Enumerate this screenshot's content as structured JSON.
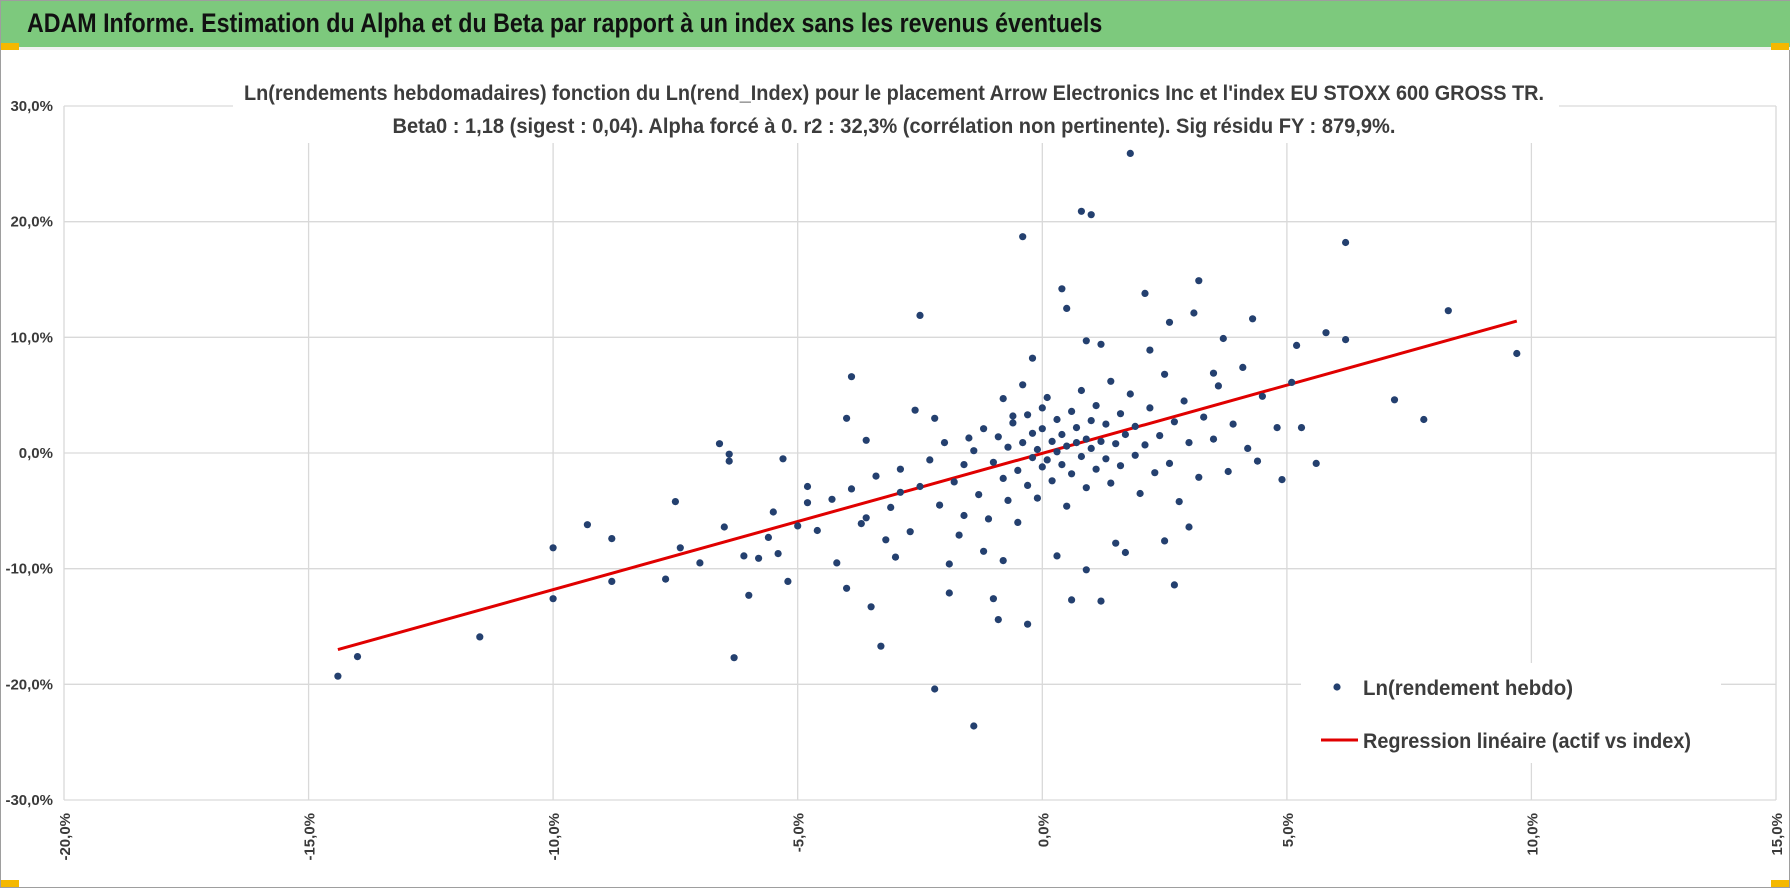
{
  "banner": {
    "title": "ADAM Informe. Estimation du Alpha et du Beta par rapport à un index sans les revenus éventuels",
    "background": "#7dc97d",
    "corner_color": "#f5b800"
  },
  "chart_data": {
    "type": "scatter",
    "title": "Ln(rendements hebdomadaires) fonction du Ln(rend_Index) pour le placement Arrow Electronics Inc et l'index EU STOXX 600 GROSS TR.",
    "subtitle": "Beta0 : 1,18 (sigest : 0,04).  Alpha forcé à 0. r2 : 32,3% (corrélation non pertinente). Sig résidu FY : 879,9%.",
    "xlabel": "",
    "ylabel": "",
    "xlim": [
      -20,
      15
    ],
    "ylim": [
      -30,
      30
    ],
    "x_ticks": [
      -20,
      -15,
      -10,
      -5,
      0,
      5,
      10,
      15
    ],
    "y_ticks": [
      -30,
      -20,
      -10,
      0,
      10,
      20,
      30
    ],
    "x_tick_labels": [
      "-20,0%",
      "-15,0%",
      "-10,0%",
      "-5,0%",
      "0,0%",
      "5,0%",
      "10,0%",
      "15,0%"
    ],
    "y_tick_labels": [
      "-30,0%",
      "-20,0%",
      "-10,0%",
      "0,0%",
      "10,0%",
      "20,0%",
      "30,0%"
    ],
    "grid": true,
    "legend_position": "bottom-right",
    "beta": 1.18,
    "series": [
      {
        "name": "Ln(rendement hebdo)",
        "kind": "points",
        "color": "#24406f",
        "points": [
          [
            -14.4,
            -19.3
          ],
          [
            -14.0,
            -17.6
          ],
          [
            -11.5,
            -15.9
          ],
          [
            -10.0,
            -12.6
          ],
          [
            -10.0,
            -8.2
          ],
          [
            -9.3,
            -6.2
          ],
          [
            -8.8,
            -11.1
          ],
          [
            -8.8,
            -7.4
          ],
          [
            -7.7,
            -10.9
          ],
          [
            -7.5,
            -4.2
          ],
          [
            -7.4,
            -8.2
          ],
          [
            -7.0,
            -9.5
          ],
          [
            -6.6,
            0.8
          ],
          [
            -6.5,
            -6.4
          ],
          [
            -6.4,
            -0.1
          ],
          [
            -6.4,
            -0.7
          ],
          [
            -6.3,
            -17.7
          ],
          [
            -6.1,
            -8.9
          ],
          [
            -6.0,
            -12.3
          ],
          [
            -5.8,
            -9.1
          ],
          [
            -5.6,
            -7.3
          ],
          [
            -5.5,
            -5.1
          ],
          [
            -5.4,
            -8.7
          ],
          [
            -5.3,
            -0.5
          ],
          [
            -5.2,
            -11.1
          ],
          [
            -5.0,
            -6.3
          ],
          [
            -4.8,
            -4.3
          ],
          [
            -4.6,
            -6.7
          ],
          [
            -4.2,
            -9.5
          ],
          [
            -4.0,
            -11.7
          ],
          [
            -3.9,
            6.6
          ],
          [
            -3.6,
            -5.6
          ],
          [
            -3.5,
            -13.3
          ],
          [
            -3.3,
            -16.7
          ],
          [
            -3.2,
            -7.5
          ],
          [
            -2.9,
            -3.4
          ],
          [
            -2.6,
            3.7
          ],
          [
            -2.5,
            11.9
          ],
          [
            -2.2,
            -20.4
          ],
          [
            -1.9,
            -12.1
          ],
          [
            -1.6,
            -5.4
          ],
          [
            -1.5,
            1.3
          ],
          [
            -1.4,
            -23.6
          ],
          [
            -1.2,
            -8.5
          ],
          [
            -1.0,
            -12.6
          ],
          [
            -0.9,
            -14.4
          ],
          [
            -0.8,
            4.7
          ],
          [
            -0.6,
            3.2
          ],
          [
            -0.4,
            18.7
          ],
          [
            -0.4,
            5.9
          ],
          [
            -0.3,
            -14.8
          ],
          [
            0.0,
            3.9
          ],
          [
            0.4,
            14.2
          ],
          [
            0.5,
            12.5
          ],
          [
            0.6,
            -12.7
          ],
          [
            0.8,
            20.9
          ],
          [
            0.9,
            9.7
          ],
          [
            1.0,
            20.6
          ],
          [
            1.2,
            -12.8
          ],
          [
            1.7,
            -8.6
          ],
          [
            1.8,
            25.9
          ],
          [
            2.1,
            13.8
          ],
          [
            2.5,
            -7.6
          ],
          [
            2.7,
            -11.4
          ],
          [
            2.6,
            11.3
          ],
          [
            3.2,
            14.9
          ],
          [
            3.1,
            12.1
          ],
          [
            3.5,
            6.9
          ],
          [
            3.7,
            9.9
          ],
          [
            4.3,
            11.6
          ],
          [
            4.4,
            -0.7
          ],
          [
            4.9,
            -2.3
          ],
          [
            5.2,
            9.3
          ],
          [
            5.3,
            2.2
          ],
          [
            5.8,
            10.4
          ],
          [
            5.6,
            -0.9
          ],
          [
            6.2,
            9.8
          ],
          [
            6.2,
            18.2
          ],
          [
            7.2,
            4.6
          ],
          [
            7.8,
            2.9
          ],
          [
            8.3,
            12.3
          ],
          [
            9.7,
            8.6
          ],
          [
            -4.3,
            -4.0
          ],
          [
            -3.9,
            -3.1
          ],
          [
            -3.7,
            -6.1
          ],
          [
            -3.4,
            -2.0
          ],
          [
            -3.1,
            -4.7
          ],
          [
            -2.9,
            -1.4
          ],
          [
            -2.7,
            -6.8
          ],
          [
            -2.5,
            -2.9
          ],
          [
            -2.3,
            -0.6
          ],
          [
            -2.1,
            -4.5
          ],
          [
            -2.0,
            0.9
          ],
          [
            -1.8,
            -2.5
          ],
          [
            -1.7,
            -7.1
          ],
          [
            -1.6,
            -1.0
          ],
          [
            -1.4,
            0.2
          ],
          [
            -1.3,
            -3.6
          ],
          [
            -1.2,
            2.1
          ],
          [
            -1.1,
            -5.7
          ],
          [
            -1.0,
            -0.8
          ],
          [
            -0.9,
            1.4
          ],
          [
            -0.8,
            -2.2
          ],
          [
            -0.7,
            0.5
          ],
          [
            -0.7,
            -4.1
          ],
          [
            -0.6,
            2.6
          ],
          [
            -0.5,
            -1.5
          ],
          [
            -0.5,
            -6.0
          ],
          [
            -0.4,
            0.9
          ],
          [
            -0.3,
            -2.8
          ],
          [
            -0.3,
            3.3
          ],
          [
            -0.2,
            -0.4
          ],
          [
            -0.2,
            1.7
          ],
          [
            -0.1,
            -3.9
          ],
          [
            -0.1,
            0.3
          ],
          [
            0.0,
            -1.2
          ],
          [
            0.0,
            2.1
          ],
          [
            0.1,
            -0.6
          ],
          [
            0.1,
            4.8
          ],
          [
            0.2,
            1.0
          ],
          [
            0.2,
            -2.4
          ],
          [
            0.3,
            0.1
          ],
          [
            0.3,
            2.9
          ],
          [
            0.4,
            -1.0
          ],
          [
            0.4,
            1.6
          ],
          [
            0.5,
            -4.6
          ],
          [
            0.5,
            0.6
          ],
          [
            0.6,
            3.6
          ],
          [
            0.6,
            -1.8
          ],
          [
            0.7,
            0.9
          ],
          [
            0.7,
            2.2
          ],
          [
            0.8,
            -0.3
          ],
          [
            0.8,
            5.4
          ],
          [
            0.9,
            1.2
          ],
          [
            0.9,
            -3.0
          ],
          [
            1.0,
            0.4
          ],
          [
            1.0,
            2.8
          ],
          [
            1.1,
            -1.4
          ],
          [
            1.1,
            4.1
          ],
          [
            1.2,
            1.0
          ],
          [
            1.3,
            -0.5
          ],
          [
            1.3,
            2.5
          ],
          [
            1.4,
            6.2
          ],
          [
            1.4,
            -2.6
          ],
          [
            1.5,
            0.8
          ],
          [
            1.6,
            3.4
          ],
          [
            1.6,
            -1.1
          ],
          [
            1.7,
            1.6
          ],
          [
            1.8,
            5.1
          ],
          [
            1.9,
            -0.2
          ],
          [
            1.9,
            2.3
          ],
          [
            2.0,
            -3.5
          ],
          [
            2.1,
            0.7
          ],
          [
            2.2,
            3.9
          ],
          [
            2.3,
            -1.7
          ],
          [
            2.4,
            1.5
          ],
          [
            2.5,
            6.8
          ],
          [
            2.6,
            -0.9
          ],
          [
            2.7,
            2.7
          ],
          [
            2.8,
            -4.2
          ],
          [
            2.9,
            4.5
          ],
          [
            3.0,
            0.9
          ],
          [
            3.2,
            -2.1
          ],
          [
            3.3,
            3.1
          ],
          [
            3.5,
            1.2
          ],
          [
            3.6,
            5.8
          ],
          [
            3.8,
            -1.6
          ],
          [
            3.9,
            2.5
          ],
          [
            4.1,
            7.4
          ],
          [
            4.2,
            0.4
          ],
          [
            4.5,
            4.9
          ],
          [
            4.8,
            2.2
          ],
          [
            5.1,
            6.1
          ],
          [
            -3.6,
            1.1
          ],
          [
            -3.0,
            -9.0
          ],
          [
            -2.2,
            3.0
          ],
          [
            -1.9,
            -9.6
          ],
          [
            -0.8,
            -9.3
          ],
          [
            0.3,
            -8.9
          ],
          [
            0.9,
            -10.1
          ],
          [
            1.5,
            -7.8
          ],
          [
            2.2,
            8.9
          ],
          [
            1.2,
            9.4
          ],
          [
            -0.2,
            8.2
          ],
          [
            3.0,
            -6.4
          ],
          [
            -4.8,
            -2.9
          ],
          [
            -4.0,
            3.0
          ]
        ]
      },
      {
        "name": "Regression linéaire (actif vs index)",
        "kind": "line",
        "color": "#e00000",
        "x": [
          -14.4,
          9.7
        ],
        "y": [
          -17.0,
          11.4
        ]
      }
    ]
  }
}
